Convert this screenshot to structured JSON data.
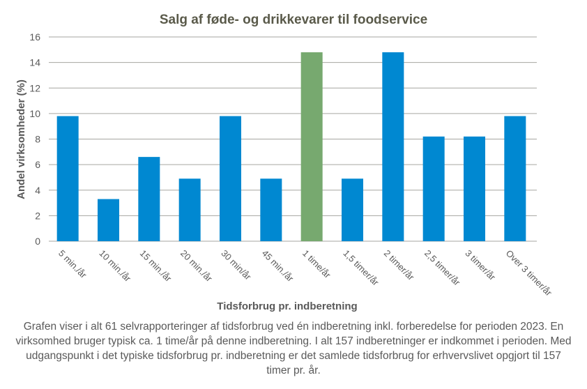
{
  "chart_data": {
    "type": "bar",
    "title": "Salg af føde- og drikkevarer  til foodservice",
    "xlabel": "Tidsforbrug pr. indberetning",
    "ylabel": "Andel virksomheder  (%)",
    "categories": [
      "5 min./år",
      "10 min./år",
      "15 min./år",
      "20 min./år",
      "30 min/år",
      "45 min./år",
      "1 time/år",
      "1,5 timer/år",
      "2 timer/år",
      "2,5 timer/år",
      "3 timer/år",
      "Over 3 timer/år"
    ],
    "values": [
      9.8,
      3.3,
      6.6,
      4.9,
      9.8,
      4.9,
      14.8,
      4.9,
      14.8,
      8.2,
      8.2,
      9.8
    ],
    "highlight_index": 6,
    "colors": {
      "bar": "#0088D1",
      "highlight": "#77A96F",
      "grid": "#A6A6A0",
      "text": "#595959",
      "title": "#5A5A4A"
    },
    "ylim": [
      0,
      16
    ],
    "yticks": [
      0,
      2,
      4,
      6,
      8,
      10,
      12,
      14,
      16
    ],
    "grid": true,
    "legend": "none"
  },
  "caption": "Grafen viser i alt 61 selvrapporteringer af tidsforbrug ved én indberetning inkl. forberedelse for perioden 2023. En virksomhed bruger typisk ca. 1 time/år på denne indberetning. I alt 157 indberetninger er indkommet i perioden. Med udgangspunkt i det typiske tidsforbrug pr. indberetning er det samlede tidsforbrug for erhvervslivet opgjort til 157 timer pr. år."
}
